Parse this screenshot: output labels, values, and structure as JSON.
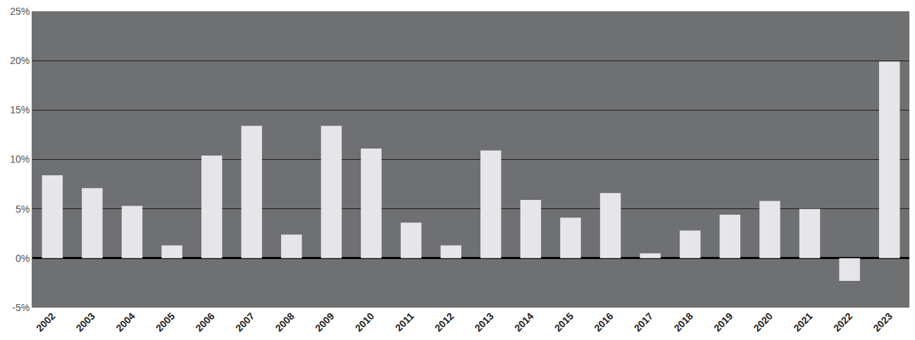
{
  "chart_data": {
    "type": "bar",
    "categories": [
      "2002",
      "2003",
      "2004",
      "2005",
      "2006",
      "2007",
      "2008",
      "2009",
      "2010",
      "2011",
      "2012",
      "2013",
      "2014",
      "2015",
      "2016",
      "2017",
      "2018",
      "2019",
      "2020",
      "2021",
      "2022",
      "2023"
    ],
    "values": [
      8.4,
      7.1,
      5.3,
      1.3,
      10.4,
      13.4,
      2.4,
      13.4,
      11.1,
      3.6,
      1.3,
      10.9,
      5.9,
      4.1,
      6.6,
      0.5,
      2.8,
      4.4,
      5.8,
      5.0,
      -2.3,
      19.9
    ],
    "color": "#e6e6e9",
    "ylim": [
      -5,
      25
    ],
    "yticks": [
      {
        "value": -5,
        "label": "-5%"
      },
      {
        "value": 0,
        "label": "0%"
      },
      {
        "value": 5,
        "label": "5%"
      },
      {
        "value": 10,
        "label": "10%"
      },
      {
        "value": 15,
        "label": "15%"
      },
      {
        "value": 20,
        "label": "20%"
      },
      {
        "value": 25,
        "label": "25%"
      }
    ],
    "grid": true
  }
}
